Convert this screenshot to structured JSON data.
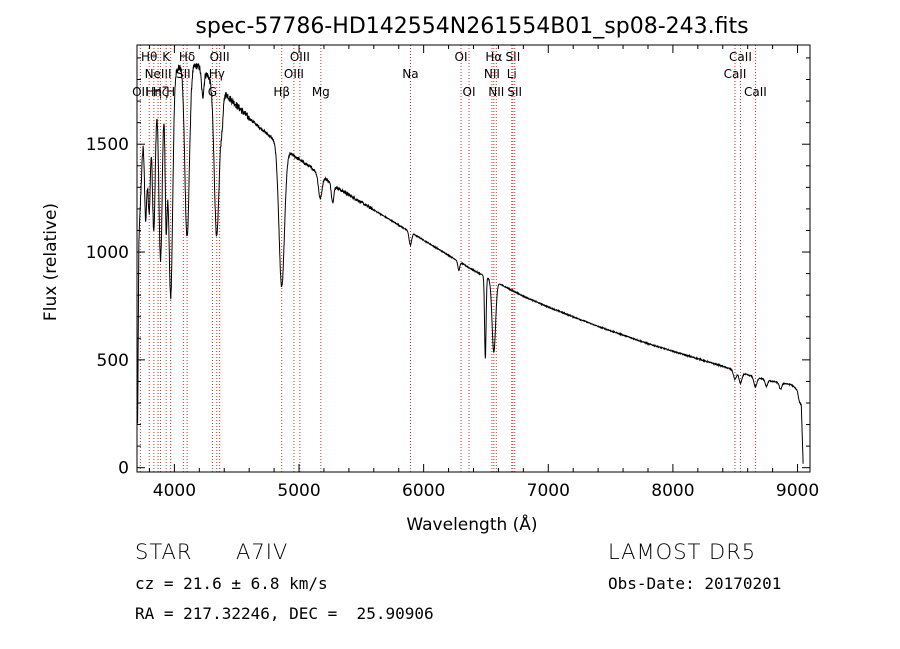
{
  "chart_data": {
    "type": "line",
    "title": "spec-57786-HD142554N261554B01_sp08-243.fits",
    "xlabel": "Wavelength (Å)",
    "ylabel": "Flux (relative)",
    "xlim": [
      3700,
      9100
    ],
    "ylim": [
      -20,
      1960
    ],
    "x_ticks": [
      4000,
      5000,
      6000,
      7000,
      8000,
      9000
    ],
    "x_tick_labels": [
      "4000",
      "5000",
      "6000",
      "7000",
      "8000",
      "9000"
    ],
    "y_ticks": [
      0,
      500,
      1000,
      1500
    ],
    "y_tick_labels": [
      "0",
      "500",
      "1000",
      "1500"
    ],
    "grid": false,
    "line_color": "#000000",
    "marker_color": "#c0392b",
    "continuum": [
      [
        3705,
        200
      ],
      [
        3715,
        1050
      ],
      [
        3750,
        1550
      ],
      [
        3800,
        1700
      ],
      [
        3850,
        1780
      ],
      [
        3900,
        1820
      ],
      [
        4000,
        1850
      ],
      [
        4100,
        1870
      ],
      [
        4200,
        1860
      ],
      [
        4300,
        1800
      ],
      [
        4400,
        1740
      ],
      [
        4500,
        1680
      ],
      [
        4600,
        1620
      ],
      [
        4700,
        1570
      ],
      [
        4800,
        1520
      ],
      [
        4900,
        1470
      ],
      [
        5000,
        1430
      ],
      [
        5100,
        1390
      ],
      [
        5200,
        1345
      ],
      [
        5300,
        1300
      ],
      [
        5400,
        1265
      ],
      [
        5500,
        1230
      ],
      [
        5600,
        1195
      ],
      [
        5700,
        1160
      ],
      [
        5800,
        1125
      ],
      [
        5900,
        1090
      ],
      [
        6000,
        1055
      ],
      [
        6100,
        1020
      ],
      [
        6200,
        985
      ],
      [
        6300,
        950
      ],
      [
        6400,
        915
      ],
      [
        6500,
        885
      ],
      [
        6600,
        855
      ],
      [
        6700,
        825
      ],
      [
        6800,
        795
      ],
      [
        6900,
        770
      ],
      [
        7000,
        745
      ],
      [
        7200,
        700
      ],
      [
        7400,
        655
      ],
      [
        7600,
        615
      ],
      [
        7800,
        575
      ],
      [
        8000,
        540
      ],
      [
        8200,
        505
      ],
      [
        8400,
        470
      ],
      [
        8600,
        430
      ],
      [
        8800,
        400
      ],
      [
        8950,
        385
      ],
      [
        9000,
        360
      ],
      [
        9030,
        300
      ],
      [
        9045,
        20
      ]
    ],
    "absorption_lines": [
      {
        "center": 3770,
        "depth": 450,
        "width": 10
      },
      {
        "center": 3798,
        "depth": 500,
        "width": 10
      },
      {
        "center": 3835,
        "depth": 650,
        "width": 12
      },
      {
        "center": 3889,
        "depth": 850,
        "width": 14
      },
      {
        "center": 3934,
        "depth": 650,
        "width": 9
      },
      {
        "center": 3970,
        "depth": 1050,
        "width": 16
      },
      {
        "center": 4102,
        "depth": 800,
        "width": 18
      },
      {
        "center": 4227,
        "depth": 120,
        "width": 10
      },
      {
        "center": 4340,
        "depth": 700,
        "width": 20
      },
      {
        "center": 4383,
        "depth": 120,
        "width": 10
      },
      {
        "center": 4861,
        "depth": 650,
        "width": 22
      },
      {
        "center": 5170,
        "depth": 110,
        "width": 14
      },
      {
        "center": 5270,
        "depth": 80,
        "width": 10
      },
      {
        "center": 5893,
        "depth": 60,
        "width": 10
      },
      {
        "center": 6282,
        "depth": 40,
        "width": 8
      },
      {
        "center": 6495,
        "depth": 380,
        "width": 6
      },
      {
        "center": 6563,
        "depth": 330,
        "width": 14
      },
      {
        "center": 8498,
        "depth": 40,
        "width": 12
      },
      {
        "center": 8542,
        "depth": 50,
        "width": 12
      },
      {
        "center": 8662,
        "depth": 45,
        "width": 12
      },
      {
        "center": 8750,
        "depth": 30,
        "width": 10
      },
      {
        "center": 8863,
        "depth": 30,
        "width": 10
      },
      {
        "center": 9014,
        "depth": 25,
        "width": 10
      }
    ],
    "line_markers": [
      {
        "x": 3727,
        "label": "OII",
        "row": 3
      },
      {
        "x": 3798,
        "label": "Hθ",
        "row": 1
      },
      {
        "x": 3835,
        "label": "Hη",
        "row": 3
      },
      {
        "x": 3869,
        "label": "NeIII",
        "row": 2
      },
      {
        "x": 3889,
        "label": "Hζ",
        "row": 3
      },
      {
        "x": 3934,
        "label": "K",
        "row": 1
      },
      {
        "x": 3970,
        "label": "H",
        "row": 3
      },
      {
        "x": 4072,
        "label": "SII",
        "row": 2
      },
      {
        "x": 4102,
        "label": "Hδ",
        "row": 1
      },
      {
        "x": 4305,
        "label": "G",
        "row": 3
      },
      {
        "x": 4340,
        "label": "Hγ",
        "row": 2
      },
      {
        "x": 4363,
        "label": "OIII",
        "row": 1
      },
      {
        "x": 4861,
        "label": "Hβ",
        "row": 3
      },
      {
        "x": 4959,
        "label": "OIII",
        "row": 2
      },
      {
        "x": 5007,
        "label": "OIII",
        "row": 1
      },
      {
        "x": 5175,
        "label": "Mg",
        "row": 3
      },
      {
        "x": 5894,
        "label": "Na",
        "row": 2
      },
      {
        "x": 6300,
        "label": "OI",
        "row": 1
      },
      {
        "x": 6364,
        "label": "OI",
        "row": 3
      },
      {
        "x": 6548,
        "label": "NII",
        "row": 2
      },
      {
        "x": 6563,
        "label": "Hα",
        "row": 1
      },
      {
        "x": 6583,
        "label": "NII",
        "row": 3
      },
      {
        "x": 6707,
        "label": "Li",
        "row": 2
      },
      {
        "x": 6716,
        "label": "SII",
        "row": 1
      },
      {
        "x": 6731,
        "label": "SII",
        "row": 3
      },
      {
        "x": 8498,
        "label": "CaII",
        "row": 2
      },
      {
        "x": 8542,
        "label": "CaII",
        "row": 1
      },
      {
        "x": 8662,
        "label": "CaII",
        "row": 3
      }
    ]
  },
  "info": {
    "object_class": "STAR",
    "subclass": "A7IV",
    "survey": "LAMOST DR5",
    "cz_line": "cz = 21.6 ± 6.8 km/s",
    "obs_date_line": "Obs-Date: 20170201",
    "coords_line": "RA = 217.32246, DEC =  25.90906"
  }
}
